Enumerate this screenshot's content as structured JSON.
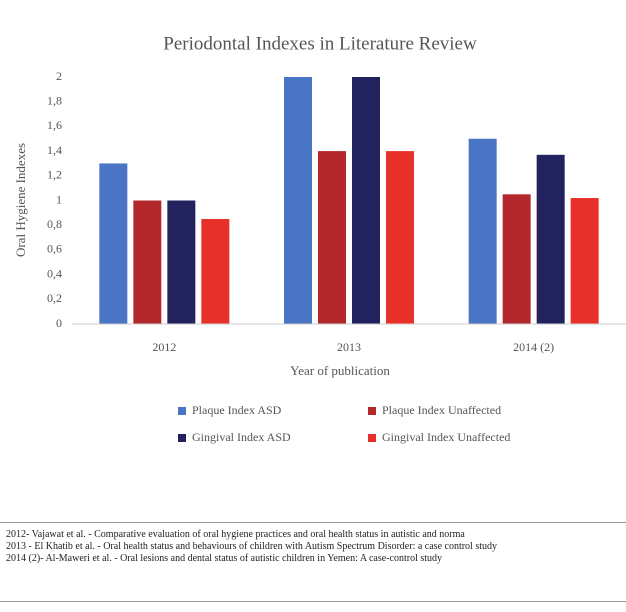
{
  "chart_data": {
    "type": "bar",
    "title": "Periodontal Indexes in Literature Review",
    "xlabel": "Year of publication",
    "ylabel": "Oral Hygiene Indexes",
    "categories": [
      "2012",
      "2013",
      "2014 (2)"
    ],
    "series": [
      {
        "name": "Plaque Index ASD",
        "color": "#4a74c4",
        "values": [
          1.3,
          2.0,
          1.5
        ]
      },
      {
        "name": "Plaque Index Unaffected",
        "color": "#b3282d",
        "values": [
          1.0,
          1.4,
          1.05
        ]
      },
      {
        "name": "Gingival Index ASD",
        "color": "#22225e",
        "values": [
          1.0,
          2.0,
          1.37
        ]
      },
      {
        "name": "Gingival Index Unaffected",
        "color": "#e8302a",
        "values": [
          0.85,
          1.4,
          1.02
        ]
      }
    ],
    "ylim": [
      0,
      2
    ],
    "yticks": [
      0,
      {
        "value": 0.2,
        "label": "0,2"
      },
      {
        "value": 0.4,
        "label": "0,4"
      },
      {
        "value": 0.6,
        "label": "0,6"
      },
      {
        "value": 0.8,
        "label": "0,8"
      },
      1,
      {
        "value": 1.2,
        "label": "1,2"
      },
      {
        "value": 1.4,
        "label": "1,4"
      },
      {
        "value": 1.6,
        "label": "1,6"
      },
      {
        "value": 1.8,
        "label": "1,8"
      },
      2
    ],
    "grid": false,
    "legend": "bottom",
    "notes": [
      "2012- Vajawat et al. - Comparative evaluation of oral hygiene practices and oral health status in autistic and norma",
      "2013 - El Khatib et al. - Oral health status and behaviours of children with Autism Spectrum Disorder: a case control study",
      "2014 (2)- Al-Maweri et al. - Oral lesions and dental status of autistic children in Yemen: A case-control study"
    ]
  }
}
